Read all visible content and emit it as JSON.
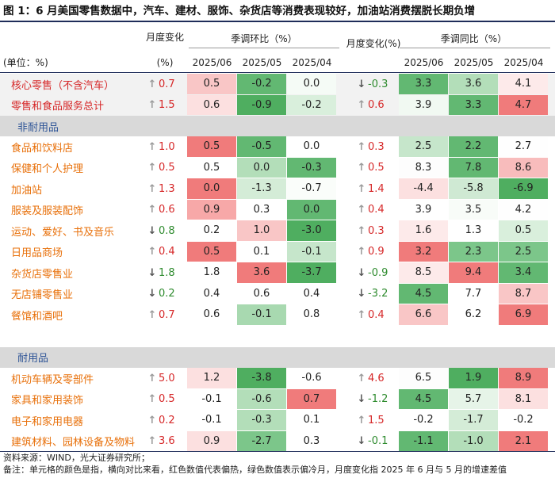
{
  "title": "图 1：6 月美国零售数据中，汽车、建材、服饰、杂货店等消费表现较好，加油站消费摆脱长期负增",
  "header": {
    "unit": "(单位：%)",
    "mom_change_left": "月度变化",
    "mom_change_left_unit": "(%)",
    "sa_mom": "季调环比（%）",
    "mom_change_right": "月度变化(%)",
    "sa_yoy": "季调同比（%）",
    "months_left": [
      "2025/06",
      "2025/05",
      "2025/04"
    ],
    "months_right": [
      "2025/06",
      "2025/05",
      "2025/04"
    ]
  },
  "sections": {
    "nondurable": "非耐用品",
    "durable": "耐用品"
  },
  "rows": [
    {
      "label": "核心零售（不含汽车）",
      "core": true,
      "chg1": "0.7",
      "dir1": "up",
      "m": [
        "0.5",
        "-0.2",
        "0.0"
      ],
      "mc": [
        "#f9c6c6",
        "#62b872",
        "#f5fbf6"
      ],
      "chg2": "-0.3",
      "dir2": "down",
      "y": [
        "3.3",
        "3.6",
        "4.1"
      ],
      "yc": [
        "#62b872",
        "#b3deb9",
        "#fdeaea"
      ]
    },
    {
      "label": "零售和食品服务总计",
      "core": true,
      "chg1": "1.5",
      "dir1": "up",
      "m": [
        "0.6",
        "-0.9",
        "-0.2"
      ],
      "mc": [
        "#fce0e0",
        "#4fae60",
        "#d9efdc"
      ],
      "chg2": "0.6",
      "dir2": "up",
      "y": [
        "3.9",
        "3.3",
        "4.7"
      ],
      "yc": [
        "#f1f9f2",
        "#62b872",
        "#f07b7b"
      ]
    },
    {
      "label": "食品和饮料店",
      "core": false,
      "chg1": "1.0",
      "dir1": "up",
      "m": [
        "0.5",
        "-0.5",
        "0.0"
      ],
      "mc": [
        "#f07b7b",
        "#62b872",
        "#ffffff"
      ],
      "chg2": "0.3",
      "dir2": "up",
      "y": [
        "2.5",
        "2.2",
        "2.7"
      ],
      "yc": [
        "#c6e6cb",
        "#62b872",
        "#fefefe"
      ]
    },
    {
      "label": "保健和个人护理",
      "core": false,
      "chg1": "0.5",
      "dir1": "up",
      "m": [
        "0.5",
        "0.0",
        "-0.3"
      ],
      "mc": [
        "#ffffff",
        "#b3deb9",
        "#62b872"
      ],
      "chg2": "0.5",
      "dir2": "up",
      "y": [
        "8.3",
        "7.8",
        "8.6"
      ],
      "yc": [
        "#fdfdfd",
        "#62b872",
        "#f8bcbc"
      ]
    },
    {
      "label": "加油站",
      "core": false,
      "chg1": "1.3",
      "dir1": "up",
      "m": [
        "0.0",
        "-1.3",
        "-0.7"
      ],
      "mc": [
        "#f07b7b",
        "#d4ecd7",
        "#fafdfa"
      ],
      "chg2": "1.4",
      "dir2": "up",
      "y": [
        "-4.4",
        "-5.8",
        "-6.9"
      ],
      "yc": [
        "#fce0e0",
        "#cfe9d3",
        "#4fae60"
      ]
    },
    {
      "label": "服装及服装配饰",
      "core": false,
      "chg1": "0.6",
      "dir1": "up",
      "m": [
        "0.9",
        "0.3",
        "0.0"
      ],
      "mc": [
        "#f7a8a8",
        "#ffffff",
        "#62b872"
      ],
      "chg2": "0.4",
      "dir2": "up",
      "y": [
        "3.9",
        "3.5",
        "4.2"
      ],
      "yc": [
        "#ffffff",
        "#f8fcf8",
        "#fefefe"
      ]
    },
    {
      "label": "运动、爱好、书及音乐",
      "core": false,
      "chg1": "0.8",
      "dir1": "down",
      "m": [
        "0.2",
        "1.0",
        "-3.0"
      ],
      "mc": [
        "#ffffff",
        "#f9c6c6",
        "#4fae60"
      ],
      "chg2": "0.3",
      "dir2": "up",
      "y": [
        "1.6",
        "1.3",
        "0.5"
      ],
      "yc": [
        "#fdeaea",
        "#ffffff",
        "#d9efdc"
      ]
    },
    {
      "label": "日用品商场",
      "core": false,
      "chg1": "0.4",
      "dir1": "up",
      "m": [
        "0.5",
        "0.1",
        "-0.1"
      ],
      "mc": [
        "#f07b7b",
        "#ffffff",
        "#c6e6cb"
      ],
      "chg2": "0.9",
      "dir2": "up",
      "y": [
        "3.2",
        "2.3",
        "2.5"
      ],
      "yc": [
        "#f07b7b",
        "#7cc68a",
        "#7cc68a"
      ]
    },
    {
      "label": "杂货店零售业",
      "core": false,
      "chg1": "1.8",
      "dir1": "down",
      "m": [
        "1.8",
        "3.6",
        "-3.7"
      ],
      "mc": [
        "#ffffff",
        "#f07b7b",
        "#4fae60"
      ],
      "chg2": "-0.9",
      "dir2": "down",
      "y": [
        "8.5",
        "9.4",
        "3.4"
      ],
      "yc": [
        "#fdeaea",
        "#f07b7b",
        "#62b872"
      ]
    },
    {
      "label": "无店铺零售业",
      "core": false,
      "chg1": "0.2",
      "dir1": "down",
      "m": [
        "0.4",
        "0.6",
        "0.4"
      ],
      "mc": [
        "#ffffff",
        "#ffffff",
        "#ffffff"
      ],
      "chg2": "-3.2",
      "dir2": "down",
      "y": [
        "4.5",
        "7.7",
        "8.7"
      ],
      "yc": [
        "#62b872",
        "#ffffff",
        "#f9c6c6"
      ]
    },
    {
      "label": "餐馆和酒吧",
      "core": false,
      "chg1": "0.7",
      "dir1": "up",
      "m": [
        "0.6",
        "-0.1",
        "0.8"
      ],
      "mc": [
        "#ffffff",
        "#a8d9b0",
        "#ffffff"
      ],
      "chg2": "0.4",
      "dir2": "up",
      "y": [
        "6.6",
        "6.2",
        "6.9"
      ],
      "yc": [
        "#f9c6c6",
        "#ffffff",
        "#f07b7b"
      ]
    },
    {
      "label": "机动车辆及零部件",
      "core": false,
      "chg1": "5.0",
      "dir1": "up",
      "m": [
        "1.2",
        "-3.8",
        "-0.6"
      ],
      "mc": [
        "#fce0e0",
        "#4fae60",
        "#ffffff"
      ],
      "chg2": "4.6",
      "dir2": "up",
      "y": [
        "6.5",
        "1.9",
        "8.9"
      ],
      "yc": [
        "#fdfdfd",
        "#4fae60",
        "#f07b7b"
      ]
    },
    {
      "label": "家具和家用装饰",
      "core": false,
      "chg1": "0.5",
      "dir1": "up",
      "m": [
        "-0.1",
        "-0.6",
        "0.7"
      ],
      "mc": [
        "#ffffff",
        "#b3deb9",
        "#f07b7b"
      ],
      "chg2": "-1.2",
      "dir2": "down",
      "y": [
        "4.5",
        "5.7",
        "8.1"
      ],
      "yc": [
        "#62b872",
        "#e6f4e8",
        "#fce0e0"
      ]
    },
    {
      "label": "电子和家用电器",
      "core": false,
      "chg1": "0.2",
      "dir1": "up",
      "m": [
        "-0.1",
        "-0.3",
        "0.1"
      ],
      "mc": [
        "#ffffff",
        "#b3deb9",
        "#ffffff"
      ],
      "chg2": "1.5",
      "dir2": "up",
      "y": [
        "-0.2",
        "-1.7",
        "-0.2"
      ],
      "yc": [
        "#ffffff",
        "#d4ecd7",
        "#ffffff"
      ]
    },
    {
      "label": "建筑材料、园林设备及物料",
      "core": false,
      "chg1": "3.6",
      "dir1": "up",
      "m": [
        "0.9",
        "-2.7",
        "0.3"
      ],
      "mc": [
        "#fce0e0",
        "#7cc68a",
        "#ffffff"
      ],
      "chg2": "-0.1",
      "dir2": "down",
      "y": [
        "-1.1",
        "-1.0",
        "2.1"
      ],
      "yc": [
        "#62b872",
        "#b3deb9",
        "#f07b7b"
      ]
    }
  ],
  "notes": {
    "source": "资料来源：WIND，光大证券研究所；",
    "remark": "备注：单元格的颜色是指，横向对比来看，红色数值代表偏热，绿色数值表示偏冷月，月度变化指 2025 年 6 月与 5 月的增速差值"
  }
}
